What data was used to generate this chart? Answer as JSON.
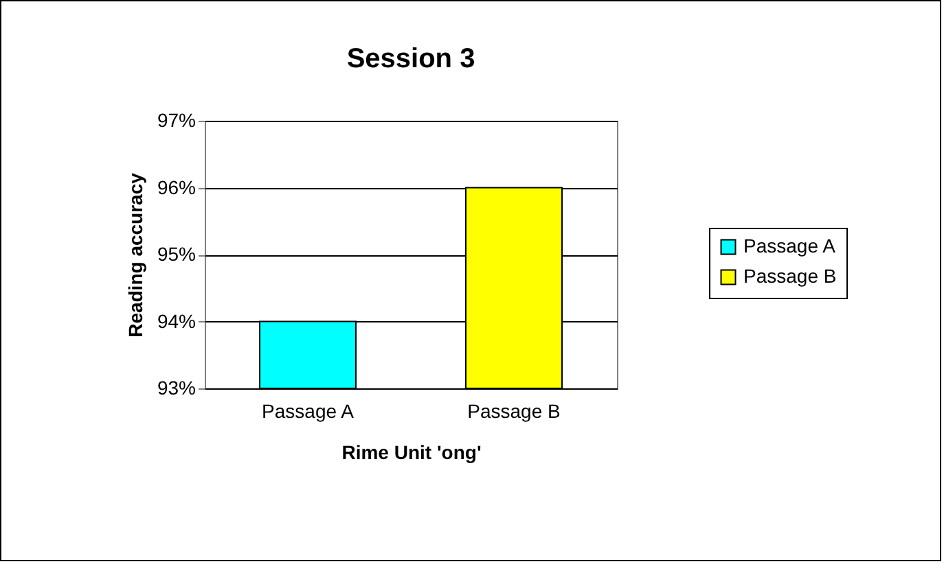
{
  "chart_data": {
    "type": "bar",
    "title": "Session 3",
    "xlabel": "Rime Unit 'ong'",
    "ylabel": "Reading accuracy",
    "categories": [
      "Passage A",
      "Passage B"
    ],
    "series": [
      {
        "name": "Passage A",
        "color": "#00ffff",
        "values": [
          94,
          null
        ]
      },
      {
        "name": "Passage B",
        "color": "#ffff00",
        "values": [
          null,
          96
        ]
      }
    ],
    "ylim": [
      93,
      97
    ],
    "yticks": [
      {
        "value": 93,
        "label": "93%"
      },
      {
        "value": 94,
        "label": "94%"
      },
      {
        "value": 95,
        "label": "95%"
      },
      {
        "value": 96,
        "label": "96%"
      },
      {
        "value": 97,
        "label": "97%"
      }
    ],
    "grid": "y",
    "legend": "right"
  }
}
